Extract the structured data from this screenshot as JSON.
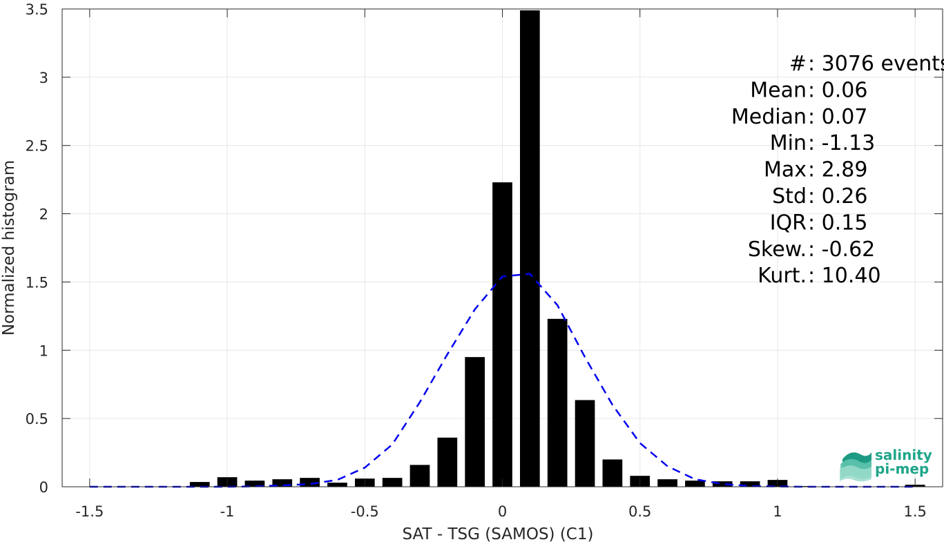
{
  "chart_data": {
    "type": "bar",
    "xlabel": "SAT - TSG (SAMOS) (C1)",
    "ylabel": "Normalized histogram",
    "xlim": [
      -1.6,
      1.6
    ],
    "ylim": [
      0,
      3.5
    ],
    "x_ticks": [
      -1.5,
      -1,
      -0.5,
      0,
      0.5,
      1,
      1.5
    ],
    "x_tick_labels": [
      "-1.5",
      "-1",
      "-0.5",
      "0",
      "0.5",
      "1",
      "1.5"
    ],
    "y_ticks": [
      0,
      0.5,
      1,
      1.5,
      2,
      2.5,
      3,
      3.5
    ],
    "y_tick_labels": [
      "0",
      "0.5",
      "1",
      "1.5",
      "2",
      "2.5",
      "3",
      "3.5"
    ],
    "grid": true,
    "bar_color": "#000000",
    "bin_width": 0.1,
    "bins": {
      "x": [
        -1.5,
        -1.4,
        -1.3,
        -1.2,
        -1.1,
        -1.0,
        -0.9,
        -0.8,
        -0.7,
        -0.6,
        -0.5,
        -0.4,
        -0.3,
        -0.2,
        -0.1,
        0.0,
        0.1,
        0.2,
        0.3,
        0.4,
        0.5,
        0.6,
        0.7,
        0.8,
        0.9,
        1.0,
        1.1,
        1.2,
        1.3,
        1.4,
        1.5
      ],
      "values": [
        0,
        0,
        0,
        0,
        0.035,
        0.07,
        0.045,
        0.055,
        0.065,
        0.03,
        0.06,
        0.065,
        0.16,
        0.36,
        0.95,
        2.23,
        3.49,
        1.23,
        0.635,
        0.2,
        0.08,
        0.055,
        0.045,
        0.04,
        0.04,
        0.05,
        0.005,
        0,
        0,
        0,
        0.015
      ]
    },
    "fit_curve": {
      "style": "dashed",
      "color": "#0000ee",
      "x": [
        -1.5,
        -1.4,
        -1.3,
        -1.2,
        -1.1,
        -1.0,
        -0.9,
        -0.8,
        -0.7,
        -0.6,
        -0.5,
        -0.4,
        -0.3,
        -0.2,
        -0.1,
        0.0,
        0.1,
        0.2,
        0.3,
        0.4,
        0.5,
        0.6,
        0.7,
        0.8,
        0.9,
        1.0,
        1.1,
        1.2,
        1.3,
        1.4,
        1.5
      ],
      "y": [
        0,
        0,
        0,
        0,
        0,
        0,
        0.003,
        0.01,
        0.02,
        0.05,
        0.14,
        0.31,
        0.62,
        0.97,
        1.3,
        1.54,
        1.56,
        1.33,
        0.95,
        0.6,
        0.32,
        0.15,
        0.055,
        0.02,
        0.005,
        0.002,
        0,
        0,
        0,
        0,
        0
      ]
    },
    "annotations": [
      {
        "label": "#  ",
        "sep": " : ",
        "value": "3076 events"
      },
      {
        "label": "Mean",
        "sep": " : ",
        "value": "0.06"
      },
      {
        "label": "Median",
        "sep": " : ",
        "value": "0.07"
      },
      {
        "label": "Min",
        "sep": " : ",
        "value": "-1.13"
      },
      {
        "label": "Max",
        "sep": " : ",
        "value": "2.89"
      },
      {
        "label": "Std",
        "sep": " : ",
        "value": "0.26"
      },
      {
        "label": "IQR",
        "sep": " : ",
        "value": "0.15"
      },
      {
        "label": "Skew.",
        "sep": " : ",
        "value": "-0.62"
      },
      {
        "label": "Kurt.",
        "sep": " : ",
        "value": "10.40"
      }
    ]
  },
  "logo": {
    "line1": "salinity",
    "line2": "pi-mep",
    "color": "#1fa58a"
  }
}
